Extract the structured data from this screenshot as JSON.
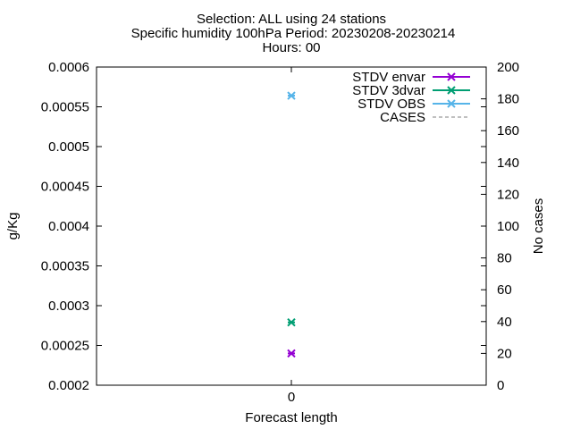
{
  "chart_data": {
    "type": "scatter",
    "title_lines": [
      "Selection: ALL using    24 stations",
      "Specific humidity 100hPa   Period: 20230208-20230214",
      "Hours: 00"
    ],
    "xlabel": "Forecast length",
    "ylabel": "g/Kg",
    "y2label": "No cases",
    "x_ticks": [
      "0"
    ],
    "ylim": [
      0.0002,
      0.0006
    ],
    "y_ticks": [
      "0.0002",
      "0.00025",
      "0.0003",
      "0.00035",
      "0.0004",
      "0.00045",
      "0.0005",
      "0.00055",
      "0.0006"
    ],
    "y2lim": [
      0,
      200
    ],
    "y2_ticks": [
      "0",
      "20",
      "40",
      "60",
      "80",
      "100",
      "120",
      "140",
      "160",
      "180",
      "200"
    ],
    "legend_position": "top-right",
    "series": [
      {
        "name": "STDV envar",
        "color": "#9400d3",
        "x": [
          0
        ],
        "values": [
          0.00024
        ]
      },
      {
        "name": "STDV 3dvar",
        "color": "#009e73",
        "x": [
          0
        ],
        "values": [
          0.000279
        ]
      },
      {
        "name": "STDV OBS",
        "color": "#56b4e9",
        "x": [
          0
        ],
        "values": [
          0.000564
        ]
      },
      {
        "name": "CASES",
        "color": "#808080",
        "dashed": true,
        "x": [],
        "values": []
      }
    ]
  }
}
